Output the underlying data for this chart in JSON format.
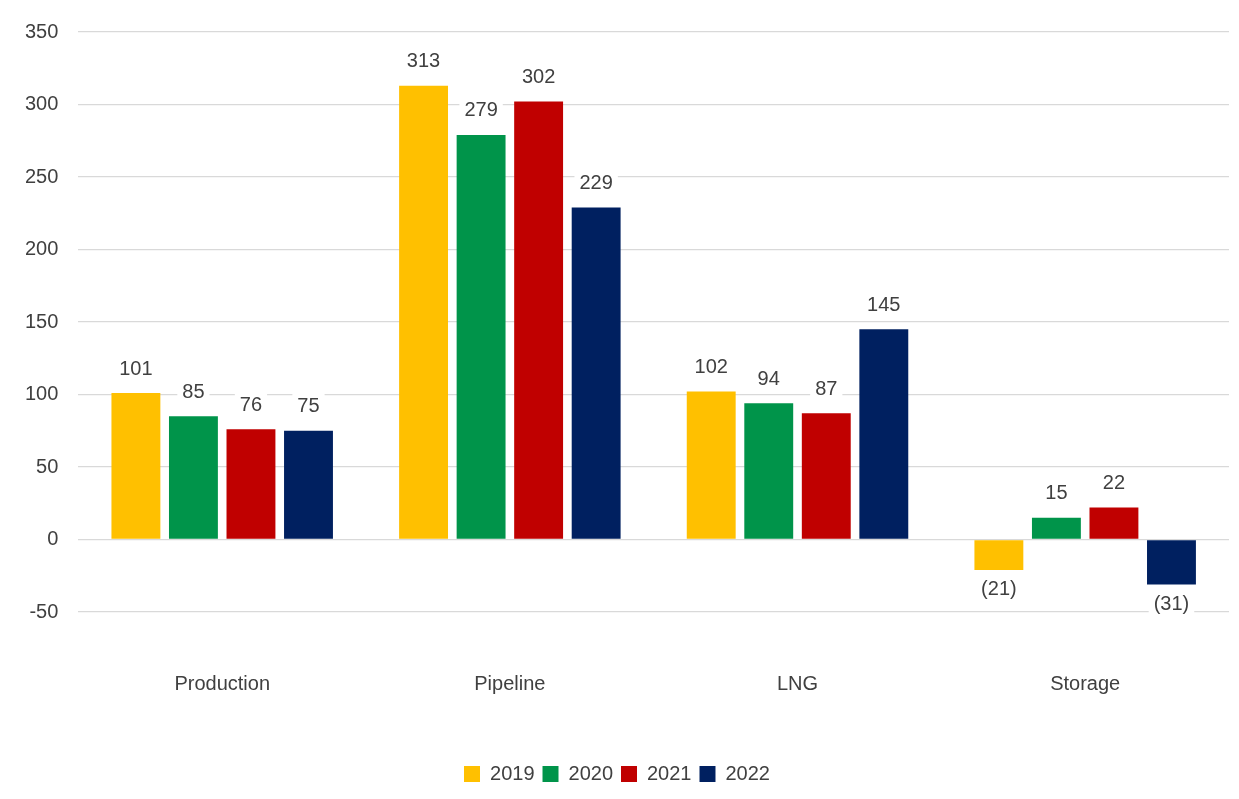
{
  "chart_data": {
    "type": "bar",
    "categories": [
      "Production",
      "Pipeline",
      "LNG",
      "Storage"
    ],
    "series": [
      {
        "name": "2019",
        "color": "#ffc000",
        "values": [
          101,
          313,
          102,
          -21
        ],
        "value_labels": [
          "101",
          "313",
          "102",
          "(21)"
        ]
      },
      {
        "name": "2020",
        "color": "#00944a",
        "values": [
          85,
          279,
          94,
          15
        ],
        "value_labels": [
          "85",
          "279",
          "94",
          "15"
        ]
      },
      {
        "name": "2021",
        "color": "#c00000",
        "values": [
          76,
          302,
          87,
          22
        ],
        "value_labels": [
          "76",
          "302",
          "87",
          "22"
        ]
      },
      {
        "name": "2022",
        "color": "#002060",
        "values": [
          75,
          229,
          145,
          -31
        ],
        "value_labels": [
          "75",
          "229",
          "145",
          "(31)"
        ]
      }
    ],
    "ylim": [
      -50,
      350
    ],
    "yticks": [
      -50,
      0,
      50,
      100,
      150,
      200,
      250,
      300,
      350
    ],
    "grid": "y",
    "legend": "bottom"
  }
}
